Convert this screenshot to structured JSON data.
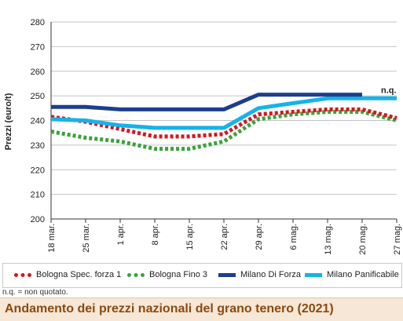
{
  "chart_data": {
    "type": "line",
    "title": "Andamento dei prezzi nazionali del grano tenero (2021)",
    "ylabel": "Prezzi (euro/t)",
    "xlabel": "",
    "ylim": [
      200,
      280
    ],
    "yticks": [
      200,
      210,
      220,
      230,
      240,
      250,
      260,
      270,
      280
    ],
    "categories": [
      "18 mar.",
      "25 mar.",
      "1 apr.",
      "8 apr.",
      "15 apr.",
      "22 apr.",
      "29 apr.",
      "6 mag.",
      "13 mag.",
      "20 mag.",
      "27 mag."
    ],
    "grid": "horizontal",
    "legend_position": "bottom",
    "series": [
      {
        "name": "Bologna Spec. forza 1",
        "color": "#d8141e",
        "style": "dotted",
        "values": [
          241.5,
          239.5,
          236.5,
          233.5,
          233.5,
          234.5,
          242.5,
          243.5,
          244.5,
          244.5,
          241.0
        ]
      },
      {
        "name": "Bologna Fino 3",
        "color": "#3aa23a",
        "style": "dotted",
        "values": [
          235.5,
          233.0,
          231.5,
          228.5,
          228.5,
          231.5,
          240.5,
          242.5,
          243.5,
          243.5,
          240.0
        ]
      },
      {
        "name": "Milano Di Forza",
        "color": "#1d3e8c",
        "style": "solid",
        "values": [
          245.5,
          245.5,
          244.5,
          244.5,
          244.5,
          244.5,
          250.5,
          250.5,
          250.5,
          250.5,
          null
        ]
      },
      {
        "name": "Milano Panificabile",
        "color": "#15b3ea",
        "style": "solid",
        "values": [
          240.5,
          240.0,
          238.0,
          237.0,
          237.0,
          237.0,
          245.0,
          247.0,
          249.0,
          249.0,
          249.0
        ]
      }
    ],
    "annotations": [
      {
        "text": "n.q.",
        "series": "Milano Di Forza",
        "category": "27 mag."
      }
    ]
  },
  "note": "n.q. = non quotato."
}
